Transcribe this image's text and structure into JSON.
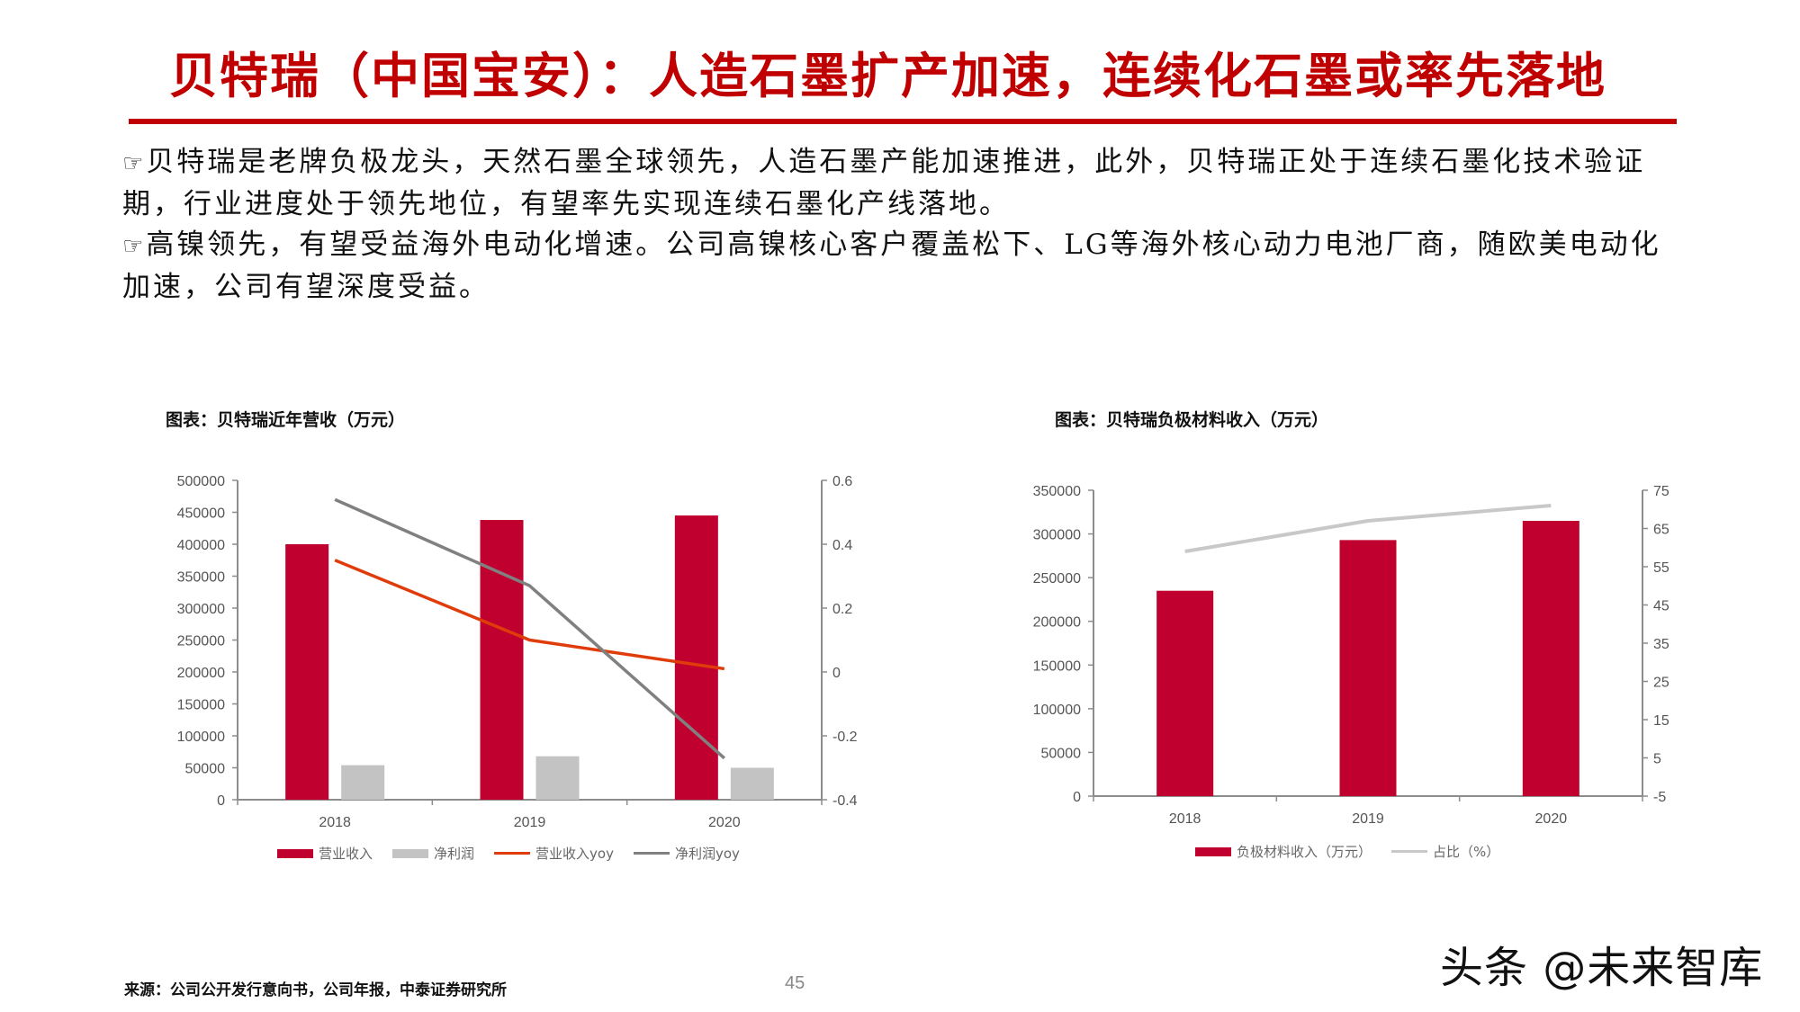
{
  "page": {
    "title": "贝特瑞（中国宝安）：人造石墨扩产加速，连续化石墨或率先落地",
    "accent_color": "#c00000",
    "bullets": [
      {
        "icon": "pointing-hand-icon",
        "text": "贝特瑞是老牌负极龙头，天然石墨全球领先，人造石墨产能加速推进，此外，贝特瑞正处于连续石墨化技术验证期，行业进度处于领先地位，有望率先实现连续石墨化产线落地。"
      },
      {
        "icon": "pointing-hand-icon",
        "text": "高镍领先，有望受益海外电动化增速。公司高镍核心客户覆盖松下、LG等海外核心动力电池厂商，随欧美电动化加速，公司有望深度受益。"
      }
    ],
    "source": "来源：公司公开发行意向书，公司年报，中泰证券研究所",
    "page_number": "45",
    "watermark": "头条 @未来智库"
  },
  "chart_data": [
    {
      "type": "bar",
      "title": "图表：贝特瑞近年营收（万元）",
      "categories": [
        "2018",
        "2019",
        "2020"
      ],
      "series": [
        {
          "name": "营业收入",
          "kind": "bar",
          "axis": "left",
          "color": "#c0002f",
          "values": [
            400000,
            438000,
            445000
          ]
        },
        {
          "name": "净利润",
          "kind": "bar",
          "axis": "left",
          "color": "#c3c3c3",
          "values": [
            54000,
            68000,
            50000
          ]
        },
        {
          "name": "营业收入yoy",
          "kind": "line",
          "axis": "right",
          "color": "#e03c0a",
          "values": [
            0.35,
            0.1,
            0.01
          ]
        },
        {
          "name": "净利润yoy",
          "kind": "line",
          "axis": "right",
          "color": "#808080",
          "values": [
            0.54,
            0.27,
            -0.27
          ]
        }
      ],
      "left_axis": {
        "min": 0,
        "max": 500000,
        "step": 50000,
        "ticks": [
          "0",
          "50000",
          "100000",
          "150000",
          "200000",
          "250000",
          "300000",
          "350000",
          "400000",
          "450000",
          "500000"
        ]
      },
      "right_axis": {
        "min": -0.4,
        "max": 0.6,
        "step": 0.2,
        "ticks": [
          "-0.4",
          "-0.2",
          "0",
          "0.2",
          "0.4",
          "0.6"
        ]
      },
      "grid": false,
      "legend_position": "bottom"
    },
    {
      "type": "bar",
      "title": "图表：贝特瑞负极材料收入（万元）",
      "categories": [
        "2018",
        "2019",
        "2020"
      ],
      "series": [
        {
          "name": "负极材料收入（万元）",
          "kind": "bar",
          "axis": "left",
          "color": "#c0002f",
          "values": [
            235000,
            293000,
            315000
          ]
        },
        {
          "name": "占比（%）",
          "kind": "line",
          "axis": "right",
          "color": "#c8c8c8",
          "values": [
            59,
            67,
            71
          ]
        }
      ],
      "left_axis": {
        "min": 0,
        "max": 350000,
        "step": 50000,
        "ticks": [
          "0",
          "50000",
          "100000",
          "150000",
          "200000",
          "250000",
          "300000",
          "350000"
        ]
      },
      "right_axis": {
        "min": -5,
        "max": 75,
        "step": 10,
        "ticks": [
          "-5",
          "5",
          "15",
          "25",
          "35",
          "45",
          "55",
          "65",
          "75"
        ]
      },
      "grid": false,
      "legend_position": "bottom"
    }
  ]
}
